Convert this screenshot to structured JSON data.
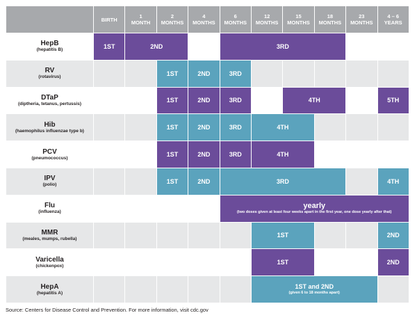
{
  "headers": [
    "BIRTH",
    "1\nMONTH",
    "2\nMONTHS",
    "4\nMONTHS",
    "6\nMONTHS",
    "12\nMONTHS",
    "15\nMONTHS",
    "18\nMONTHS",
    "23\nMONTHS",
    "4 – 6\nYEARS"
  ],
  "vaccines": {
    "hepb": {
      "name": "HepB",
      "sub": "(hepatitis B)",
      "doses": [
        "1ST",
        "2ND",
        "3RD"
      ]
    },
    "rv": {
      "name": "RV",
      "sub": "(rotavirus)",
      "doses": [
        "1ST",
        "2ND",
        "3RD"
      ]
    },
    "dtap": {
      "name": "DTaP",
      "sub": "(diptheria, tetanus, pertussis)",
      "doses": [
        "1ST",
        "2ND",
        "3RD",
        "4TH",
        "5TH"
      ]
    },
    "hib": {
      "name": "Hib",
      "sub": "(haemophilus influenzae type b)",
      "doses": [
        "1ST",
        "2ND",
        "3RD",
        "4TH"
      ]
    },
    "pcv": {
      "name": "PCV",
      "sub": "(pneumococcus)",
      "doses": [
        "1ST",
        "2ND",
        "3RD",
        "4TH"
      ]
    },
    "ipv": {
      "name": "IPV",
      "sub": "(polio)",
      "doses": [
        "1ST",
        "2ND",
        "3RD",
        "4TH"
      ]
    },
    "flu": {
      "name": "Flu",
      "sub": "(influenza)",
      "dose_label": "yearly",
      "dose_note": "(two doses given at least four weeks apart in the first year, one dose yearly after that)"
    },
    "mmr": {
      "name": "MMR",
      "sub": "(meales, mumps, rubella)",
      "doses": [
        "1ST",
        "2ND"
      ]
    },
    "varicella": {
      "name": "Varicella",
      "sub": "(chickenpox)",
      "doses": [
        "1ST",
        "2ND"
      ]
    },
    "hepa": {
      "name": "HepA",
      "sub": "(hepatitis A)",
      "dose_label": "1ST and 2ND",
      "dose_note": "(given 6 to 18 months apart)"
    }
  },
  "colors": {
    "purple": "#6b4c9a",
    "teal": "#5ba3bd",
    "header": "#a7a9ac",
    "row_alt": "#e6e7e8"
  },
  "source": "Source: Centers for Disease Control and Prevention. For more information, visit cdc.gov"
}
